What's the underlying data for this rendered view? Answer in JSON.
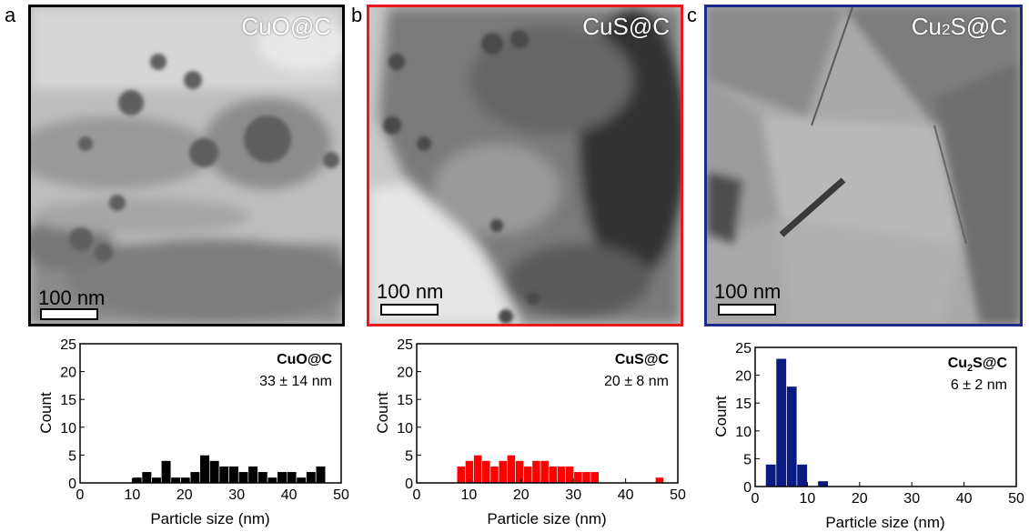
{
  "panels": [
    {
      "letter": "a",
      "sample": "CuO@C",
      "scale_label": "100 nm",
      "frame_color": "#000000",
      "bar_color": "#000000",
      "histogram": {
        "sample_label": "CuO@C",
        "stat": "33 ± 14 nm"
      }
    },
    {
      "letter": "b",
      "sample": "CuS@C",
      "scale_label": "100 nm",
      "frame_color": "#e8181c",
      "bar_color": "#ff0000",
      "histogram": {
        "sample_label": "CuS@C",
        "stat": "20 ± 8 nm"
      }
    },
    {
      "letter": "c",
      "sample": "Cu2S@C",
      "sample_display": {
        "pre": "Cu",
        "sub": "2",
        "post": "S@C"
      },
      "scale_label": "100 nm",
      "frame_color": "#1c2a8c",
      "bar_color": "#0a1a80",
      "histogram": {
        "sample_label_parts": {
          "pre": "Cu",
          "sub": "2",
          "post": "S@C"
        },
        "stat": "6 ± 2 nm"
      }
    }
  ],
  "chart_data": [
    {
      "type": "bar",
      "xlabel": "Particle size (nm)",
      "ylabel": "Count",
      "xlim": [
        0,
        50
      ],
      "ylim": [
        0,
        25
      ],
      "xticks": [
        0,
        10,
        20,
        30,
        40,
        50
      ],
      "yticks": [
        0,
        5,
        10,
        15,
        20,
        25
      ],
      "bin_width": 1.85,
      "bin_starts": [
        10.0,
        11.85,
        13.7,
        15.55,
        17.4,
        19.25,
        21.1,
        22.95,
        24.8,
        26.65,
        28.5,
        30.35,
        32.2,
        34.05,
        35.9,
        37.75,
        39.6,
        41.45,
        43.3,
        45.15,
        47.0
      ],
      "values": [
        1,
        2,
        1,
        4,
        1,
        1,
        2,
        5,
        4,
        3,
        3,
        2,
        3,
        2,
        1,
        2,
        2,
        1,
        2,
        3,
        0
      ]
    },
    {
      "type": "bar",
      "xlabel": "Particle size (nm)",
      "ylabel": "Count",
      "xlim": [
        0,
        50
      ],
      "ylim": [
        0,
        25
      ],
      "xticks": [
        0,
        10,
        20,
        30,
        40,
        50
      ],
      "yticks": [
        0,
        5,
        10,
        15,
        20,
        25
      ],
      "bin_width": 1.6,
      "bin_starts": [
        7.7,
        9.3,
        10.9,
        12.5,
        14.1,
        15.7,
        17.3,
        18.9,
        20.5,
        22.1,
        23.7,
        25.3,
        26.9,
        28.5,
        30.1,
        31.7,
        33.3,
        45.7
      ],
      "values": [
        3,
        4,
        5,
        4,
        3,
        4,
        5,
        4,
        3,
        4,
        4,
        3,
        3,
        3,
        2,
        2,
        2,
        1
      ]
    },
    {
      "type": "bar",
      "xlabel": "Particle size (nm)",
      "ylabel": "Count",
      "xlim": [
        0,
        50
      ],
      "ylim": [
        0,
        25
      ],
      "xticks": [
        0,
        10,
        20,
        30,
        40,
        50
      ],
      "yticks": [
        0,
        5,
        10,
        15,
        20,
        25
      ],
      "bin_width": 2.0,
      "bin_starts": [
        2.0,
        4.0,
        6.0,
        8.0,
        12.0
      ],
      "values": [
        4,
        23,
        18,
        4,
        1
      ]
    }
  ]
}
